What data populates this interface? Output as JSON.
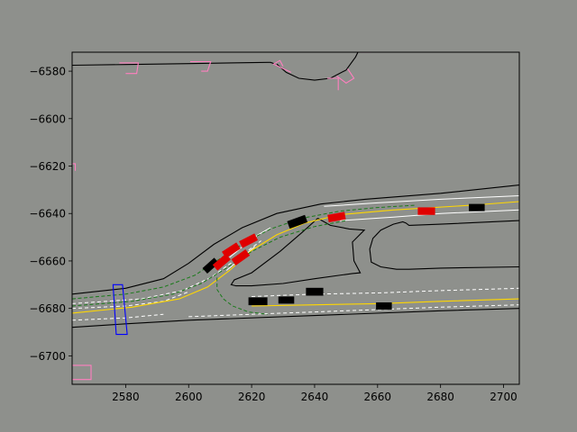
{
  "chart_data": {
    "type": "scatter",
    "title": "",
    "xlabel": "",
    "ylabel": "",
    "xlim": [
      2563,
      2705
    ],
    "ylim": [
      -6712,
      -6572
    ],
    "xticks": [
      2580,
      2600,
      2620,
      2640,
      2660,
      2680,
      2700
    ],
    "yticks": [
      -6580,
      -6600,
      -6620,
      -6640,
      -6660,
      -6680,
      -6700
    ],
    "grid": false,
    "legend": "none",
    "colors": {
      "figure_bg": "#8e908c",
      "axes_bg": "#8e908c",
      "road_edge": "#000000",
      "center_line": "#ffd700",
      "lane_line": "#ffffff",
      "route": "#1a7a1a",
      "ego_vehicle": "#e00000",
      "other_vehicle": "#000000",
      "crosswalk": "#ff7fbf",
      "stop_line": "#0000ff"
    },
    "road_boundaries": [
      [
        [
          2563,
          -6577.5
        ],
        [
          2580,
          -6577.2
        ],
        [
          2600,
          -6576.8
        ],
        [
          2625,
          -6576.3
        ],
        [
          2626,
          -6576.3
        ],
        [
          2627.5,
          -6577
        ]
      ],
      [
        [
          2628,
          -6577
        ],
        [
          2631,
          -6580.5
        ],
        [
          2635,
          -6583
        ],
        [
          2640,
          -6583.8
        ],
        [
          2645,
          -6583
        ],
        [
          2650,
          -6579.5
        ],
        [
          2653,
          -6574
        ],
        [
          2654.5,
          -6570
        ]
      ],
      [
        [
          2563,
          -6674
        ],
        [
          2580,
          -6671.5
        ],
        [
          2592,
          -6667.5
        ],
        [
          2600,
          -6661
        ],
        [
          2608,
          -6653
        ],
        [
          2617,
          -6646
        ],
        [
          2628,
          -6640
        ],
        [
          2642,
          -6636
        ],
        [
          2656,
          -6634
        ],
        [
          2680,
          -6631.5
        ],
        [
          2705,
          -6628
        ]
      ],
      [
        [
          2563,
          -6688
        ],
        [
          2580,
          -6686.5
        ],
        [
          2600,
          -6685
        ],
        [
          2640,
          -6683
        ],
        [
          2680,
          -6681
        ],
        [
          2705,
          -6680
        ]
      ],
      [
        [
          2641,
          -6642
        ],
        [
          2645,
          -6645
        ],
        [
          2651,
          -6646.5
        ],
        [
          2655.8,
          -6647
        ],
        [
          2652,
          -6652
        ],
        [
          2652.5,
          -6660
        ],
        [
          2654.5,
          -6665
        ],
        [
          2652,
          -6665.3
        ],
        [
          2640,
          -6667.5
        ],
        [
          2630,
          -6669.5
        ],
        [
          2620,
          -6670.5
        ],
        [
          2615,
          -6670.5
        ],
        [
          2613.5,
          -6670
        ],
        [
          2614.5,
          -6668
        ],
        [
          2620,
          -6665
        ],
        [
          2629,
          -6656
        ],
        [
          2636,
          -6648
        ],
        [
          2641,
          -6642
        ]
      ],
      [
        [
          2705,
          -6662.5
        ],
        [
          2680,
          -6663
        ],
        [
          2670,
          -6663.5
        ],
        [
          2666,
          -6663.5
        ],
        [
          2661,
          -6662.5
        ],
        [
          2658,
          -6660.5
        ],
        [
          2657.5,
          -6655
        ],
        [
          2658.5,
          -6650.5
        ],
        [
          2661,
          -6647
        ],
        [
          2665,
          -6644.5
        ],
        [
          2668,
          -6643.5
        ],
        [
          2669,
          -6644
        ],
        [
          2670,
          -6645
        ],
        [
          2680,
          -6644.5
        ],
        [
          2705,
          -6643
        ]
      ]
    ],
    "center_lines": [
      [
        [
          2563,
          -6682
        ],
        [
          2582,
          -6679.5
        ],
        [
          2597,
          -6676
        ],
        [
          2606,
          -6671
        ],
        [
          2613,
          -6664
        ],
        [
          2620,
          -6655.5
        ],
        [
          2628,
          -6649
        ],
        [
          2637,
          -6644
        ],
        [
          2648,
          -6640.5
        ],
        [
          2665,
          -6638.5
        ],
        [
          2690,
          -6636.5
        ],
        [
          2705,
          -6635
        ]
      ],
      [
        [
          2620,
          -6679
        ],
        [
          2640,
          -6678.5
        ],
        [
          2660,
          -6678
        ],
        [
          2680,
          -6677
        ],
        [
          2705,
          -6676
        ]
      ]
    ],
    "lane_lines": [
      [
        [
          2563,
          -6685
        ],
        [
          2580,
          -6684
        ],
        [
          2592,
          -6682.5
        ]
      ],
      [
        [
          2563,
          -6678
        ],
        [
          2585,
          -6676
        ],
        [
          2598,
          -6672.5
        ],
        [
          2607,
          -6667
        ],
        [
          2616,
          -6658.5
        ],
        [
          2623,
          -6651.5
        ]
      ],
      [
        [
          2563,
          -6680
        ],
        [
          2580,
          -6679
        ],
        [
          2592,
          -6677
        ],
        [
          2600,
          -6673
        ]
      ],
      [
        [
          2600,
          -6683.5
        ],
        [
          2620,
          -6682.5
        ],
        [
          2640,
          -6681.5
        ],
        [
          2660,
          -6680.5
        ],
        [
          2680,
          -6679.5
        ],
        [
          2705,
          -6678.5
        ]
      ],
      [
        [
          2620,
          -6675
        ],
        [
          2640,
          -6674
        ],
        [
          2660,
          -6673.5
        ],
        [
          2680,
          -6672.5
        ],
        [
          2705,
          -6671.5
        ]
      ]
    ],
    "lane_lines_solid": [
      [
        [
          2613,
          -6658.5
        ],
        [
          2618,
          -6653
        ],
        [
          2622,
          -6649
        ],
        [
          2626,
          -6646
        ]
      ],
      [
        [
          2612,
          -6664
        ],
        [
          2617,
          -6658.5
        ],
        [
          2621,
          -6654
        ]
      ],
      [
        [
          2643,
          -6637
        ],
        [
          2660,
          -6635.5
        ],
        [
          2680,
          -6634
        ],
        [
          2705,
          -6632.5
        ]
      ],
      [
        [
          2648,
          -6643
        ],
        [
          2665,
          -6641.5
        ],
        [
          2680,
          -6640
        ],
        [
          2705,
          -6638.5
        ]
      ]
    ],
    "route_paths": [
      [
        [
          2563,
          -6676
        ],
        [
          2580,
          -6674
        ],
        [
          2592,
          -6671
        ],
        [
          2602,
          -6666
        ],
        [
          2610,
          -6659
        ],
        [
          2618,
          -6652
        ],
        [
          2626,
          -6646.5
        ],
        [
          2636,
          -6642
        ],
        [
          2648,
          -6639
        ],
        [
          2660,
          -6637.5
        ],
        [
          2672,
          -6636.5
        ]
      ],
      [
        [
          2563,
          -6679
        ],
        [
          2582,
          -6677
        ],
        [
          2595,
          -6674
        ],
        [
          2604,
          -6669.5
        ],
        [
          2612,
          -6663
        ],
        [
          2620,
          -6656
        ],
        [
          2629,
          -6650
        ],
        [
          2640,
          -6645.5
        ],
        [
          2650,
          -6643
        ]
      ],
      [
        [
          2609,
          -6667
        ],
        [
          2609,
          -6672
        ],
        [
          2611,
          -6676
        ],
        [
          2614,
          -6679
        ],
        [
          2619,
          -6681.5
        ],
        [
          2625,
          -6682.5
        ]
      ]
    ],
    "ego_vehicles": [
      {
        "x": 2610.5,
        "y": -6660.5,
        "angle": 40
      },
      {
        "x": 2613.5,
        "y": -6655.5,
        "angle": 33
      },
      {
        "x": 2616.5,
        "y": -6658.5,
        "angle": 35
      },
      {
        "x": 2619,
        "y": -6651.5,
        "angle": 27
      },
      {
        "x": 2647,
        "y": -6641.5,
        "angle": 10
      },
      {
        "x": 2675.5,
        "y": -6639,
        "angle": 0
      }
    ],
    "other_vehicles": [
      {
        "x": 2607,
        "y": -6662,
        "angle": 42,
        "w": 5,
        "h": 2.3
      },
      {
        "x": 2634.5,
        "y": -6643.5,
        "angle": 20,
        "w": 6,
        "h": 2.5
      },
      {
        "x": 2691.5,
        "y": -6637.5,
        "angle": 0,
        "w": 5,
        "h": 2.3
      },
      {
        "x": 2622,
        "y": -6677,
        "angle": 0,
        "w": 6,
        "h": 2.5
      },
      {
        "x": 2631,
        "y": -6676.5,
        "angle": 0,
        "w": 5,
        "h": 2.3
      },
      {
        "x": 2640,
        "y": -6673,
        "angle": 0,
        "w": 5.5,
        "h": 2.5
      },
      {
        "x": 2662,
        "y": -6679,
        "angle": 0,
        "w": 5,
        "h": 2.3
      }
    ],
    "crosswalks": [
      [
        [
          2578,
          -6576.5
        ],
        [
          2584,
          -6576.5
        ],
        [
          2583.5,
          -6581
        ],
        [
          2580,
          -6581
        ]
      ],
      [
        [
          2600.5,
          -6576
        ],
        [
          2607,
          -6576
        ],
        [
          2606,
          -6580
        ],
        [
          2604,
          -6580
        ]
      ],
      [
        [
          2630,
          -6578
        ],
        [
          2629,
          -6575.5
        ],
        [
          2627,
          -6577
        ],
        [
          2632.5,
          -6580.5
        ]
      ],
      [
        [
          2644,
          -6583
        ],
        [
          2647.5,
          -6583
        ],
        [
          2647.5,
          -6588
        ]
      ],
      [
        [
          2650.5,
          -6579
        ],
        [
          2652.5,
          -6583
        ],
        [
          2650,
          -6585
        ],
        [
          2647,
          -6582
        ]
      ],
      [
        [
          2654.5,
          -6572
        ],
        [
          2658,
          -6572
        ]
      ],
      [
        [
          2563,
          -6704
        ],
        [
          2569,
          -6704
        ],
        [
          2569,
          -6710
        ],
        [
          2563,
          -6710
        ]
      ],
      [
        [
          2563,
          -6619
        ],
        [
          2564,
          -6619
        ],
        [
          2564,
          -6622
        ]
      ]
    ],
    "stop_lines": [
      [
        [
          2577,
          -6691
        ],
        [
          2576,
          -6670
        ],
        [
          2579,
          -6670
        ],
        [
          2580.5,
          -6691
        ]
      ]
    ]
  }
}
